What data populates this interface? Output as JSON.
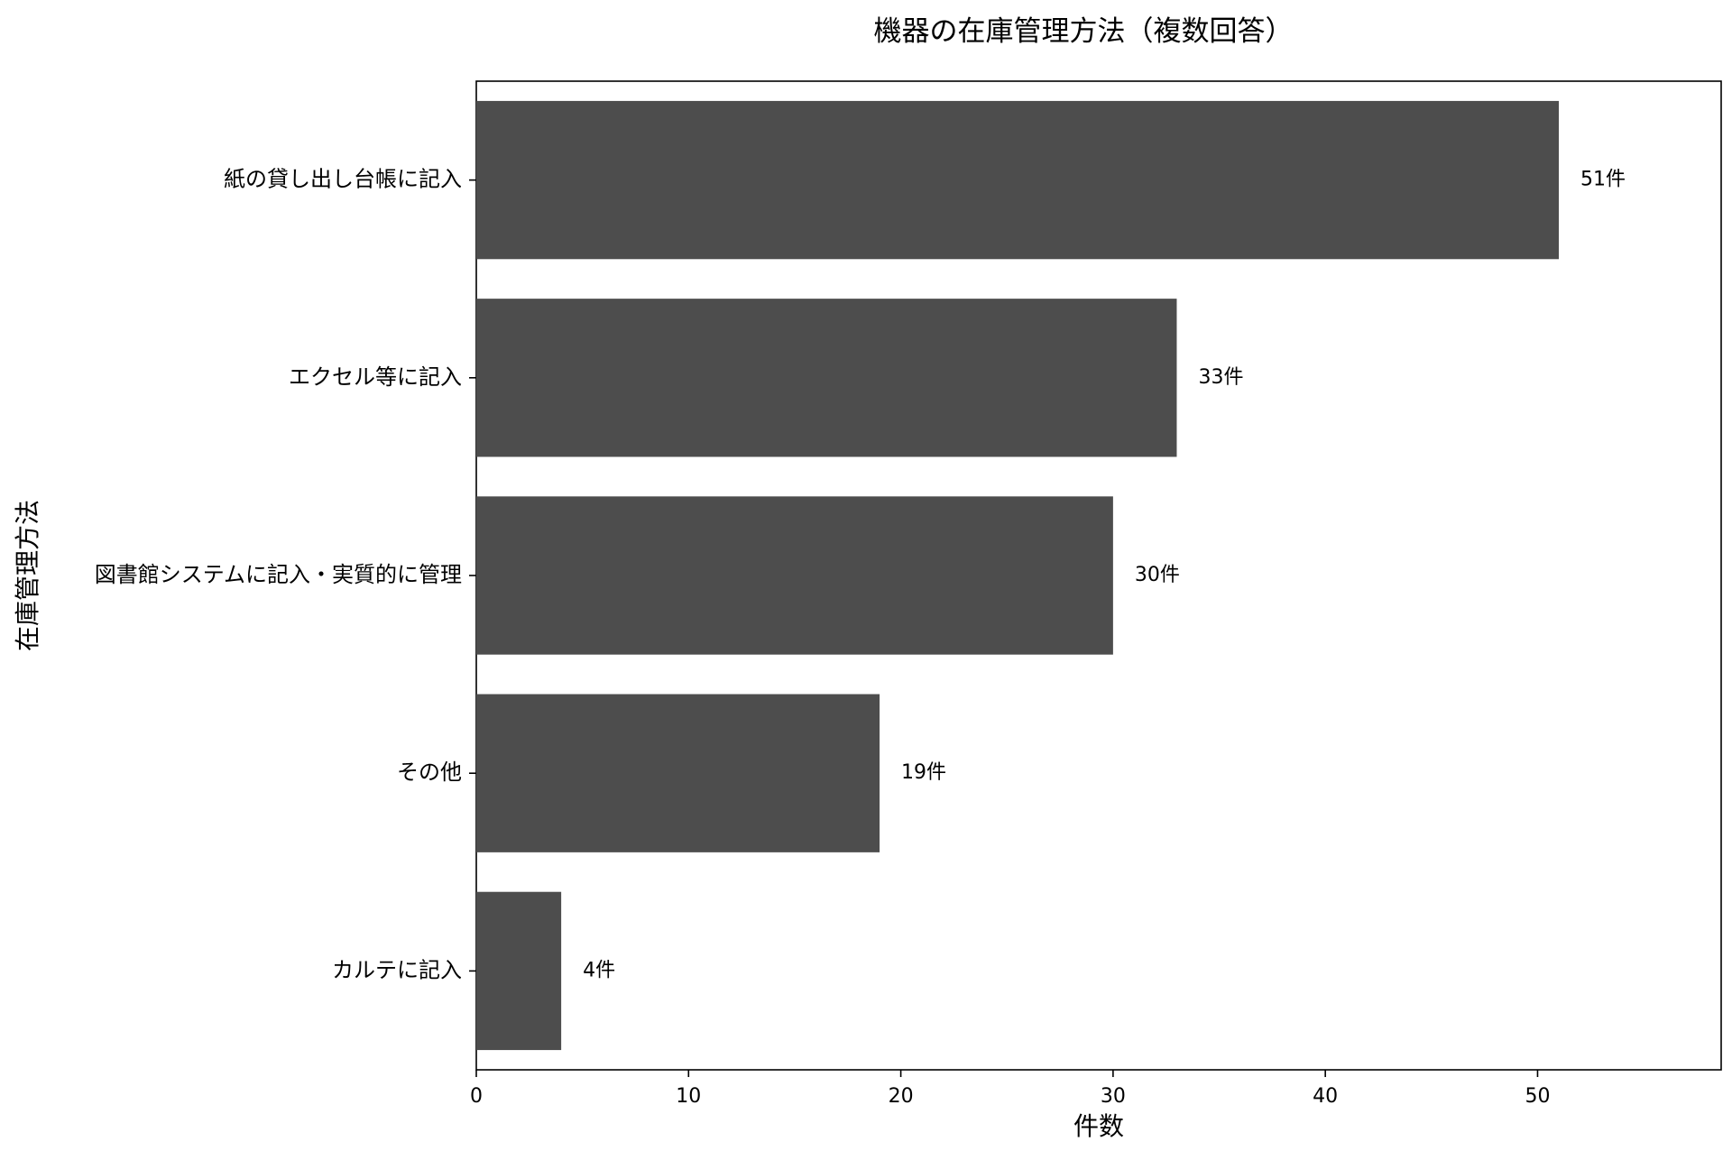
{
  "chart_data": {
    "type": "bar",
    "orientation": "horizontal",
    "title": "機器の在庫管理方法（複数回答）",
    "xlabel": "件数",
    "ylabel": "在庫管理方法",
    "categories": [
      "紙の貸し出し台帳に記入",
      "エクセル等に記入",
      "図書館システムに記入・実質的に管理",
      "その他",
      "カルテに記入"
    ],
    "values": [
      51,
      33,
      30,
      19,
      4
    ],
    "data_labels": [
      "51件",
      "33件",
      "30件",
      "19件",
      "4件"
    ],
    "xlim": [
      0,
      58.65
    ],
    "xticks": [
      0,
      10,
      20,
      30,
      40,
      50
    ],
    "bar_color": "#4d4d4d",
    "grid": false
  }
}
